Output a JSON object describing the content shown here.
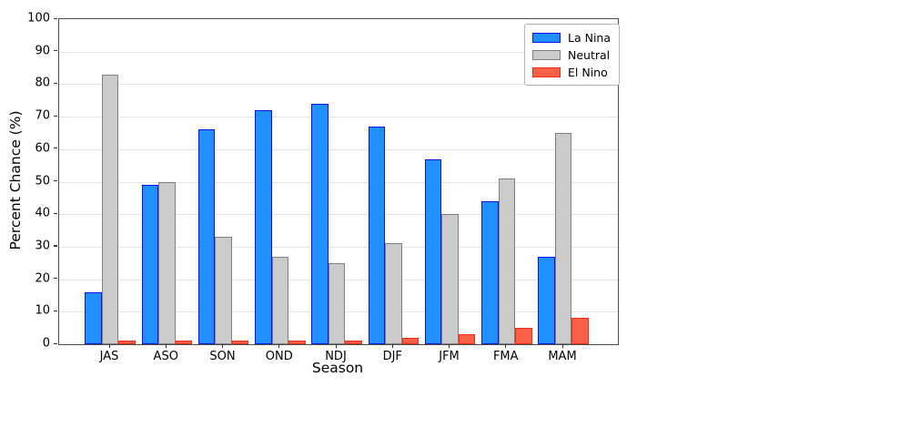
{
  "chart_data": {
    "type": "bar",
    "title": "",
    "xlabel": "Season",
    "ylabel": "Percent Chance (%)",
    "categories": [
      "JAS",
      "ASO",
      "SON",
      "OND",
      "NDJ",
      "DJF",
      "JFM",
      "FMA",
      "MAM"
    ],
    "series": [
      {
        "name": "La Nina",
        "fill_color": "#1e90ff",
        "edge_color": "#0f0ff0",
        "values": [
          16,
          49,
          66,
          72,
          74,
          67,
          57,
          44,
          27
        ]
      },
      {
        "name": "Neutral",
        "fill_color": "#cbcbcb",
        "edge_color": "#808080",
        "values": [
          83,
          50,
          33,
          27,
          25,
          31,
          40,
          51,
          65
        ]
      },
      {
        "name": "El Nino",
        "fill_color": "#fb6049",
        "edge_color": "#f22a12",
        "values": [
          1,
          1,
          1,
          1,
          1,
          2,
          3,
          5,
          8
        ]
      }
    ],
    "ylim": [
      0,
      100
    ],
    "ytick_step": 10,
    "y_tick_labels": [
      "0",
      "10",
      "20",
      "30",
      "40",
      "50",
      "60",
      "70",
      "80",
      "90",
      "100"
    ],
    "grid": "horizontal",
    "gridline_color": "#e6e6e6",
    "legend_position": "top-right",
    "legend_labels": [
      "La Nina",
      "Neutral",
      "El Nino"
    ]
  }
}
